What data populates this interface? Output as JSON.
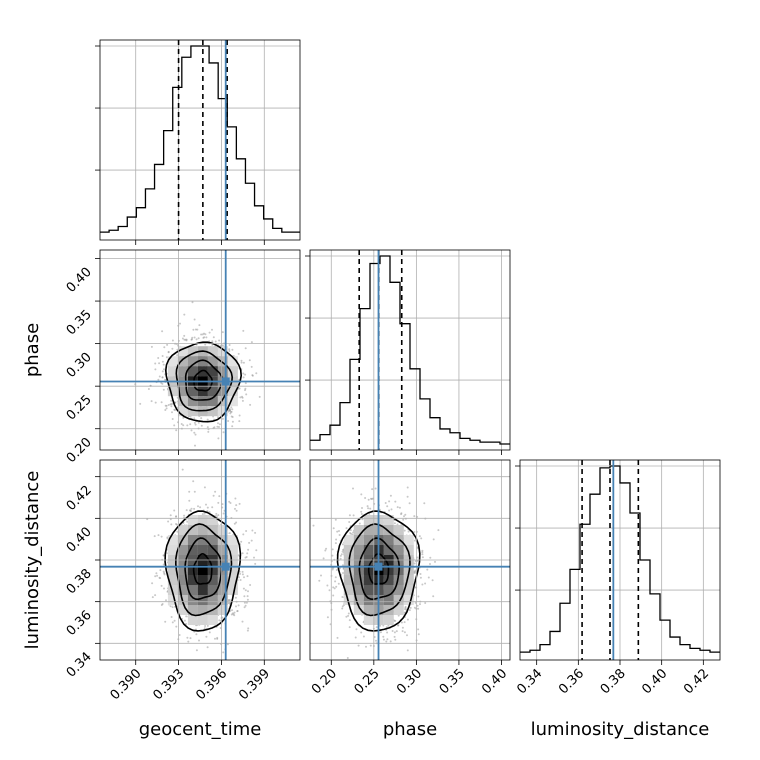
{
  "chart_data": {
    "type": "corner",
    "parameters": [
      {
        "name": "geocent_time",
        "label": "geocent_time",
        "range": [
          0.3875,
          0.4015
        ],
        "ticks": [
          0.39,
          0.393,
          0.396,
          0.399
        ],
        "tick_labels": [
          "0.390",
          "0.393",
          "0.396",
          "0.399"
        ],
        "median": 0.3947,
        "quantile_low": 0.393,
        "quantile_high": 0.3964,
        "truth": 0.3963,
        "std": 0.0012,
        "hist_values": [
          0.01,
          0.02,
          0.04,
          0.09,
          0.14,
          0.24,
          0.37,
          0.55,
          0.78,
          0.94,
          1.0,
          1.0,
          0.91,
          0.72,
          0.57,
          0.4,
          0.27,
          0.15,
          0.08,
          0.03,
          0.01,
          0.01
        ]
      },
      {
        "name": "phase",
        "label": "phase",
        "range": [
          0.175,
          0.41
        ],
        "ticks": [
          0.2,
          0.25,
          0.3,
          0.35,
          0.4
        ],
        "tick_labels": [
          "0.20",
          "0.25",
          "0.30",
          "0.35",
          "0.40"
        ],
        "median": 0.2558,
        "quantile_low": 0.2328,
        "quantile_high": 0.2828,
        "truth": 0.2555,
        "std": 0.022,
        "hist_values": [
          0.02,
          0.05,
          0.1,
          0.22,
          0.45,
          0.72,
          0.96,
          1.0,
          0.86,
          0.64,
          0.4,
          0.24,
          0.14,
          0.08,
          0.06,
          0.03,
          0.02,
          0.01,
          0.01,
          0.0
        ]
      },
      {
        "name": "luminosity_distance",
        "label": "luminosity_distance",
        "range": [
          0.332,
          0.428
        ],
        "ticks": [
          0.34,
          0.36,
          0.38,
          0.4,
          0.42
        ],
        "tick_labels": [
          "0.34",
          "0.36",
          "0.38",
          "0.40",
          "0.42"
        ],
        "median": 0.3752,
        "quantile_low": 0.3618,
        "quantile_high": 0.3888,
        "truth": 0.3768,
        "std": 0.0135,
        "hist_values": [
          0.01,
          0.02,
          0.05,
          0.12,
          0.27,
          0.45,
          0.69,
          0.85,
          0.99,
          1.0,
          0.91,
          0.75,
          0.5,
          0.32,
          0.18,
          0.09,
          0.05,
          0.03,
          0.02,
          0.01
        ]
      }
    ],
    "grid": true,
    "truth_color": "#4682b4"
  }
}
